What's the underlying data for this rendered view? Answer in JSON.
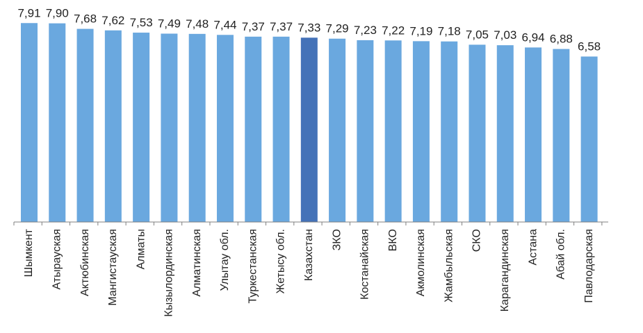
{
  "chart_data": {
    "type": "bar",
    "categories": [
      "Шымкент",
      "Атырауская",
      "Актюбинская",
      "Мангистауская",
      "Алматы",
      "Кызылординская",
      "Алматинская",
      "Улытау обл.",
      "Туркестанская",
      "Жетысу обл.",
      "Казахстан",
      "ЗКО",
      "Костанайская",
      "ВКО",
      "Акмолинская",
      "Жамбыльская",
      "СКО",
      "Карагандинская",
      "Астана",
      "Абай обл.",
      "Павлодарская"
    ],
    "values": [
      7.91,
      7.9,
      7.68,
      7.62,
      7.53,
      7.49,
      7.48,
      7.44,
      7.37,
      7.37,
      7.33,
      7.29,
      7.23,
      7.22,
      7.19,
      7.18,
      7.05,
      7.03,
      6.94,
      6.88,
      6.58
    ],
    "value_labels": [
      "7,91",
      "7,90",
      "7,68",
      "7,62",
      "7,53",
      "7,49",
      "7,48",
      "7,44",
      "7,37",
      "7,37",
      "7,33",
      "7,29",
      "7,23",
      "7,22",
      "7,19",
      "7,18",
      "7,05",
      "7,03",
      "6,94",
      "6,88",
      "6,58"
    ],
    "highlight_category": "Казахстан",
    "title": "",
    "xlabel": "",
    "ylabel": "",
    "ylim": [
      0,
      8.0
    ],
    "grid": false,
    "legend": "none",
    "colors": {
      "bar": "#6aa8df",
      "highlight": "#4472b8",
      "axis": "#7f7f7f",
      "text": "#222222"
    }
  }
}
